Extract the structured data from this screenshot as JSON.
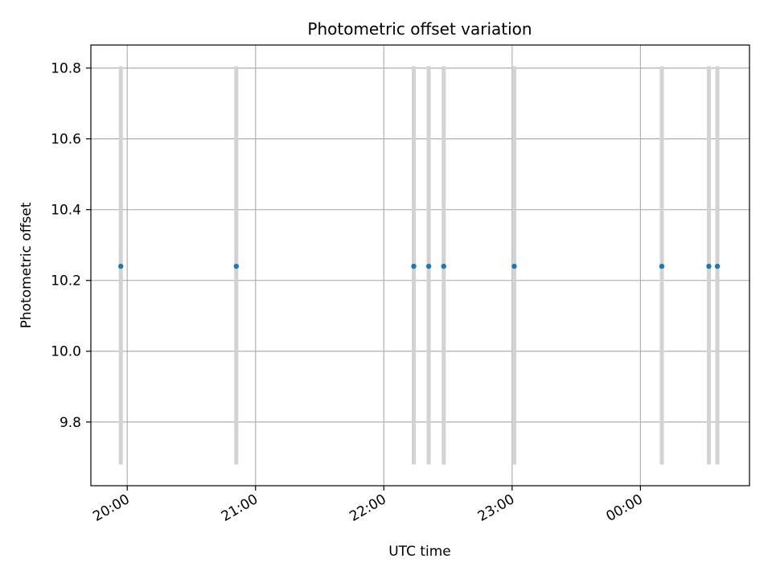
{
  "chart_data": {
    "type": "scatter",
    "title": "Photometric offset variation",
    "xlabel": "UTC time",
    "ylabel": "Photometric offset",
    "xlim": [
      "19:43",
      "24:51"
    ],
    "ylim": [
      9.62,
      10.865
    ],
    "grid": true,
    "x_ticks": [
      {
        "value": "20:00",
        "label": "20:00"
      },
      {
        "value": "21:00",
        "label": "21:00"
      },
      {
        "value": "22:00",
        "label": "22:00"
      },
      {
        "value": "23:00",
        "label": "23:00"
      },
      {
        "value": "24:00",
        "label": "00:00"
      }
    ],
    "y_ticks": [
      9.8,
      10.0,
      10.2,
      10.4,
      10.6,
      10.8
    ],
    "points": [
      {
        "x": "19:57",
        "y": 10.24,
        "err_low": 9.68,
        "err_high": 10.805
      },
      {
        "x": "20:51",
        "y": 10.24,
        "err_low": 9.68,
        "err_high": 10.805
      },
      {
        "x": "22:14",
        "y": 10.24,
        "err_low": 9.68,
        "err_high": 10.805
      },
      {
        "x": "22:21",
        "y": 10.24,
        "err_low": 9.68,
        "err_high": 10.805
      },
      {
        "x": "22:28",
        "y": 10.24,
        "err_low": 9.68,
        "err_high": 10.805
      },
      {
        "x": "23:01",
        "y": 10.24,
        "err_low": 9.68,
        "err_high": 10.805
      },
      {
        "x": "24:10",
        "y": 10.24,
        "err_low": 9.68,
        "err_high": 10.805
      },
      {
        "x": "24:32",
        "y": 10.24,
        "err_low": 9.68,
        "err_high": 10.805
      },
      {
        "x": "24:36",
        "y": 10.24,
        "err_low": 9.68,
        "err_high": 10.805
      }
    ],
    "colors": {
      "point": "#1f77b4",
      "errorbar": "#d3d3d3",
      "grid": "#b0b0b0",
      "axes": "#000000"
    }
  }
}
